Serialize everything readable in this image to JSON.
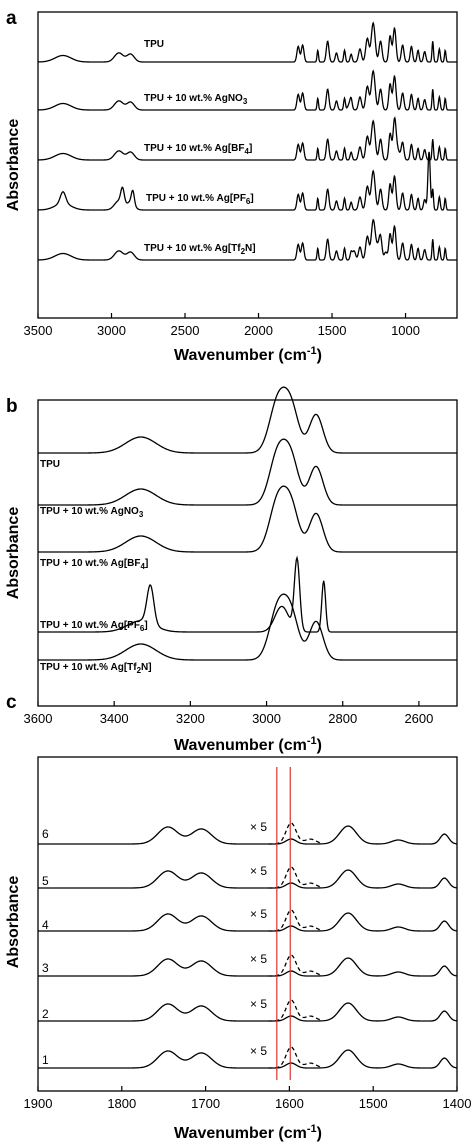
{
  "chart_data": [
    {
      "type": "line",
      "panel_label": "a",
      "xlabel": "Wavenumber (cm",
      "xlabel_sup": "-1",
      "xlabel_close": ")",
      "ylabel": "Absorbance",
      "xlim": [
        3500,
        650
      ],
      "x_ticks": [
        3500,
        3000,
        2500,
        2000,
        1500,
        1000
      ],
      "grid": false,
      "series": [
        {
          "name": "TPU",
          "label_sub": "",
          "label_tail": ""
        },
        {
          "name": "TPU + 10 wt.% AgNO",
          "label_sub": "3",
          "label_tail": ""
        },
        {
          "name": "TPU + 10 wt.% Ag[BF",
          "label_sub": "4",
          "label_tail": "]"
        },
        {
          "name": "TPU + 10 wt.% Ag[PF",
          "label_sub": "6",
          "label_tail": "]"
        },
        {
          "name": "TPU + 10 wt.% Ag[Tf",
          "label_sub": "2",
          "label_tail": "N]"
        }
      ]
    },
    {
      "type": "line",
      "panel_label": "b",
      "xlabel": "Wavenumber (cm",
      "xlabel_sup": "-1",
      "xlabel_close": ")",
      "ylabel": "Absorbance",
      "xlim": [
        3600,
        2500
      ],
      "x_ticks": [
        3600,
        3400,
        3200,
        3000,
        2800,
        2600
      ],
      "grid": false,
      "series": [
        {
          "name": "TPU",
          "label_sub": "",
          "label_tail": ""
        },
        {
          "name": "TPU + 10 wt.% AgNO",
          "label_sub": "3",
          "label_tail": ""
        },
        {
          "name": "TPU + 10 wt.% Ag[BF",
          "label_sub": "4",
          "label_tail": "]"
        },
        {
          "name": "TPU + 10 wt.% Ag[PF",
          "label_sub": "6",
          "label_tail": "]"
        },
        {
          "name": "TPU + 10 wt.% Ag[Tf",
          "label_sub": "2",
          "label_tail": "N]"
        }
      ]
    },
    {
      "type": "line",
      "panel_label": "c",
      "xlabel": "Wavenumber (cm",
      "xlabel_sup": "-1",
      "xlabel_close": ")",
      "ylabel": "Absorbance",
      "xlim": [
        1900,
        1400
      ],
      "x_ticks": [
        1900,
        1800,
        1700,
        1600,
        1500,
        1400
      ],
      "grid": false,
      "reference_lines_x": [
        1615,
        1599
      ],
      "reference_line_color": "#e03030",
      "magnification_label": "× 5",
      "series": [
        {
          "name": "1"
        },
        {
          "name": "2"
        },
        {
          "name": "3"
        },
        {
          "name": "4"
        },
        {
          "name": "5"
        },
        {
          "name": "6"
        }
      ]
    }
  ]
}
